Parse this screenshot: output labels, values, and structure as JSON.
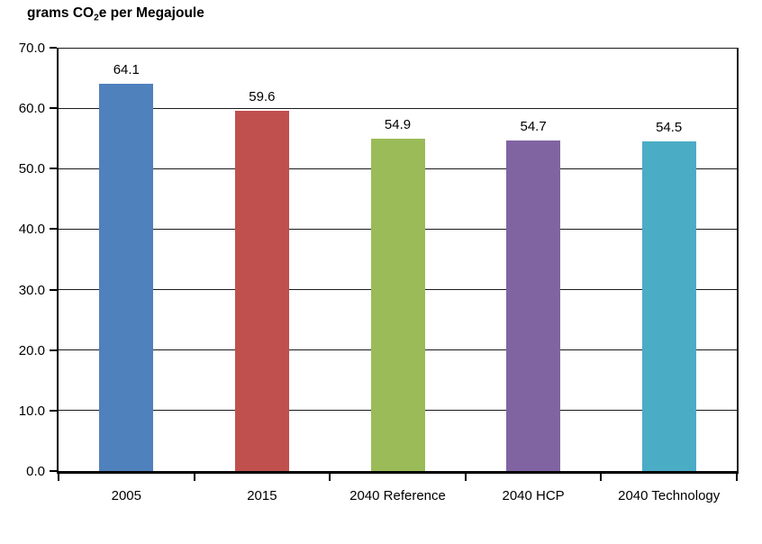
{
  "title": {
    "prefix": "grams CO",
    "sub": "2",
    "suffix": "e per Megajoule"
  },
  "chart_data": {
    "type": "bar",
    "title": "grams CO2e per Megajoule",
    "xlabel": "",
    "ylabel": "grams CO2e per Megajoule",
    "ylim": [
      0,
      70
    ],
    "ytick_step": 10,
    "yticks": [
      {
        "value": 0,
        "label": "0.0"
      },
      {
        "value": 10,
        "label": "10.0"
      },
      {
        "value": 20,
        "label": "20.0"
      },
      {
        "value": 30,
        "label": "30.0"
      },
      {
        "value": 40,
        "label": "40.0"
      },
      {
        "value": 50,
        "label": "50.0"
      },
      {
        "value": 60,
        "label": "60.0"
      },
      {
        "value": 70,
        "label": "70.0"
      }
    ],
    "categories": [
      "2005",
      "2015",
      "2040 Reference",
      "2040 HCP",
      "2040 Technology"
    ],
    "values": [
      64.1,
      59.6,
      54.9,
      54.7,
      54.5
    ],
    "value_labels": [
      "64.1",
      "59.6",
      "54.9",
      "54.7",
      "54.5"
    ],
    "bar_colors": [
      "#4F81BD",
      "#C0504D",
      "#9BBB59",
      "#8064A2",
      "#4BACC6"
    ],
    "grid": true,
    "legend": "none",
    "grid_color": "#1a1a1a",
    "axis_color": "#000000"
  }
}
